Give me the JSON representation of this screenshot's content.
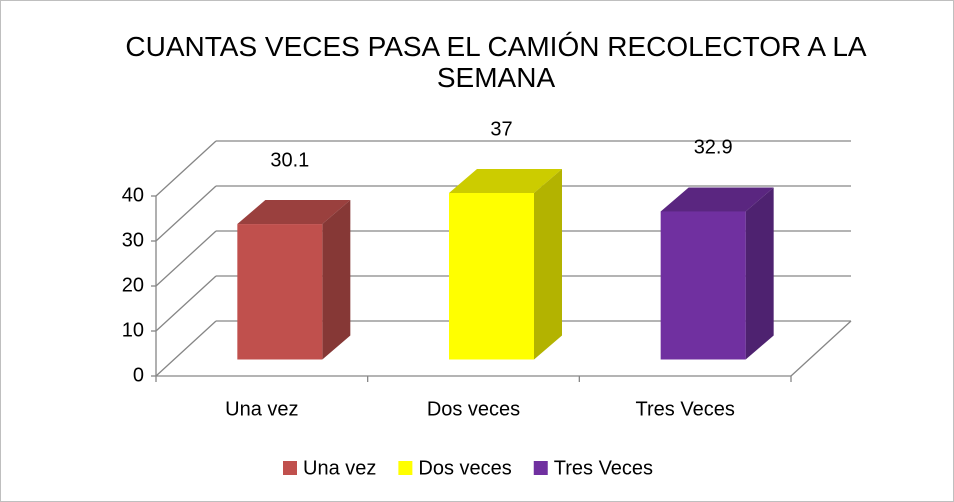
{
  "chart_data": {
    "type": "bar3d",
    "title": "CUANTAS VECES PASA EL CAMIÓN RECOLECTOR A LA SEMANA",
    "categories": [
      "Una vez",
      "Dos veces",
      "Tres Veces"
    ],
    "values": [
      30.1,
      37,
      32.9
    ],
    "colors": [
      "#c0504d",
      "#ffff00",
      "#7030a0"
    ],
    "ylim": [
      0,
      40
    ],
    "yticks": [
      0,
      10,
      20,
      30,
      40
    ],
    "grid": true,
    "legend": "bottom"
  }
}
